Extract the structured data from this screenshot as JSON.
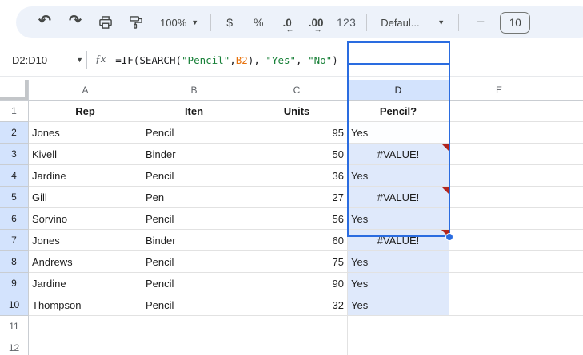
{
  "toolbar": {
    "undo": "↶",
    "redo": "↷",
    "zoom": {
      "label": "100%"
    },
    "currency": "$",
    "percent": "%",
    "decrease_decimal": ".0",
    "decrease_decimal_arrow": "←",
    "increase_decimal": ".00",
    "increase_decimal_arrow": "→",
    "more_formats": "123",
    "font": {
      "label": "Defaul..."
    },
    "font_size_minus": "−",
    "font_size_value": "10"
  },
  "formula_bar": {
    "name_box": "D2:D10",
    "fx_label": "ƒx",
    "formula": "=IF(SEARCH(\"Pencil\",B2), \"Yes\", \"No\")",
    "parts": [
      {
        "t": "=IF(SEARCH(",
        "c": "d"
      },
      {
        "t": "\"Pencil\"",
        "c": "s"
      },
      {
        "t": ",",
        "c": "d"
      },
      {
        "t": "B2",
        "c": "r"
      },
      {
        "t": "), ",
        "c": "d"
      },
      {
        "t": "\"Yes\"",
        "c": "s"
      },
      {
        "t": ", ",
        "c": "d"
      },
      {
        "t": "\"No\"",
        "c": "s"
      },
      {
        "t": ")",
        "c": "d"
      }
    ]
  },
  "sheet": {
    "columns": [
      "A",
      "B",
      "C",
      "D",
      "E"
    ],
    "selected_column": "D",
    "selected_rows_from": 2,
    "selected_rows_to": 10,
    "selected_range": "D2:D10",
    "active_cell": "D2",
    "rows": [
      {
        "n": 1,
        "header": true,
        "cells": {
          "A": "Rep",
          "B": "Iten",
          "C": "Units",
          "D": "Pencil?"
        }
      },
      {
        "n": 2,
        "cells": {
          "A": "Jones",
          "B": "Pencil",
          "C": "95",
          "D": "Yes"
        }
      },
      {
        "n": 3,
        "error": true,
        "cells": {
          "A": "Kivell",
          "B": "Binder",
          "C": "50",
          "D": "#VALUE!"
        }
      },
      {
        "n": 4,
        "cells": {
          "A": "Jardine",
          "B": "Pencil",
          "C": "36",
          "D": "Yes"
        }
      },
      {
        "n": 5,
        "error": true,
        "cells": {
          "A": "Gill",
          "B": "Pen",
          "C": "27",
          "D": "#VALUE!"
        }
      },
      {
        "n": 6,
        "cells": {
          "A": "Sorvino",
          "B": "Pencil",
          "C": "56",
          "D": "Yes"
        }
      },
      {
        "n": 7,
        "error": true,
        "cells": {
          "A": "Jones",
          "B": "Binder",
          "C": "60",
          "D": "#VALUE!"
        }
      },
      {
        "n": 8,
        "cells": {
          "A": "Andrews",
          "B": "Pencil",
          "C": "75",
          "D": "Yes"
        }
      },
      {
        "n": 9,
        "cells": {
          "A": "Jardine",
          "B": "Pencil",
          "C": "90",
          "D": "Yes"
        }
      },
      {
        "n": 10,
        "cells": {
          "A": "Thompson",
          "B": "Pencil",
          "C": "32",
          "D": "Yes"
        }
      },
      {
        "n": 11,
        "cells": {}
      },
      {
        "n": 12,
        "cells": {}
      }
    ]
  },
  "colors": {
    "selection_border": "#2a6ce0",
    "selection_fill": "#dfe9fb",
    "selected_header": "#d3e3fd",
    "error_marker": "#b3261e",
    "formula_string": "#188038",
    "formula_ref": "#e8710a",
    "toolbar_bg": "#edf2fa"
  }
}
